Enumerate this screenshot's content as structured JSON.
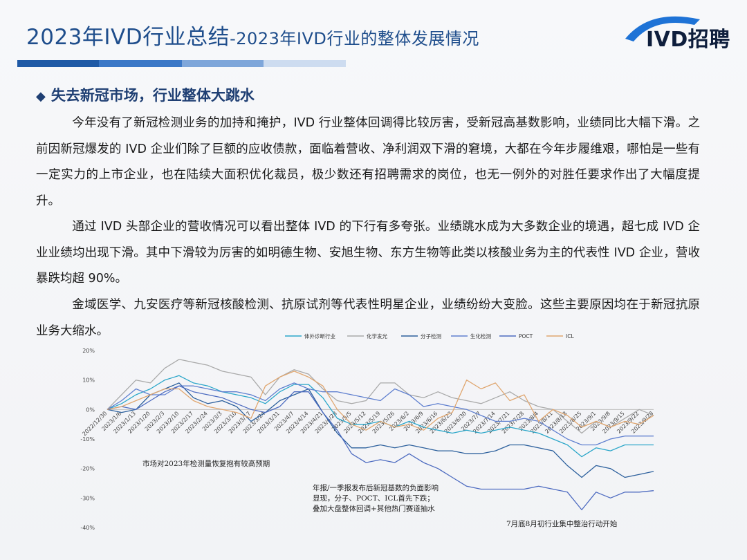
{
  "header": {
    "title_main": "2023年IVD行业总结",
    "title_sub": "-2023年IVD行业的整体发展情况",
    "logo_text": "IVD招聘",
    "bar_colors": [
      "#1f5aa6",
      "#3b78c7",
      "#7ea6da",
      "#cddcf0"
    ]
  },
  "section": {
    "bullet": "◆",
    "heading": "失去新冠市场，行业整体大跳水"
  },
  "paragraphs": [
    "今年没有了新冠检测业务的加持和掩护，IVD 行业整体回调得比较厉害，受新冠高基数影响，业绩同比大幅下滑。之前因新冠爆发的 IVD 企业们除了巨额的应收债款，面临着营收、净利润双下滑的窘境，大都在今年步履维艰，哪怕是一些有一定实力的上市企业，也在陆续大面积优化裁员，极少数还有招聘需求的岗位，也无一例外的对胜任要求作出了大幅度提升。",
    "通过 IVD 头部企业的营收情况可以看出整体 IVD 的下行有多夸张。业绩跳水成为大多数企业的境遇，超七成 IVD 企业业绩均出现下滑。其中下滑较为厉害的如明德生物、安旭生物、东方生物等此类以核酸业务为主的代表性 IVD 企业，营收暴跌均超 90%。",
    "金域医学、九安医疗等新冠核酸检测、抗原试剂等代表性明星企业，业绩纷纷大变脸。这些主要原因均在于新冠抗原业务大缩水。"
  ],
  "chart_data": {
    "type": "line",
    "ylim": [
      -40,
      20
    ],
    "yticks": [
      "20%",
      "10%",
      "0%",
      "-10%",
      "-20%",
      "-30%",
      "-40%"
    ],
    "x": [
      "2022/12/30",
      "2023/1/6",
      "2023/1/13",
      "2023/1/20",
      "2023/2/3",
      "2023/2/10",
      "2023/2/17",
      "2023/2/24",
      "2023/3/3",
      "2023/3/10",
      "2023/3/17",
      "2023/3/24",
      "2023/3/31",
      "2023/4/7",
      "2023/4/14",
      "2023/4/21",
      "2023/4/28",
      "2023/5/5",
      "2023/5/12",
      "2023/5/19",
      "2023/5/26",
      "2023/6/2",
      "2023/6/9",
      "2023/6/16",
      "2023/6/23",
      "2023/6/30",
      "2023/7/7",
      "2023/7/14",
      "2023/7/21",
      "2023/7/28",
      "2023/8/4",
      "2023/8/11",
      "2023/8/18",
      "2023/8/25",
      "2023/9/1",
      "2023/9/8",
      "2023/9/15",
      "2023/9/22",
      "2023/9/28"
    ],
    "series": [
      {
        "name": "体外诊断行业",
        "color": "#2aa6c9",
        "values": [
          0,
          2,
          5,
          7,
          10,
          11.5,
          9,
          8,
          6,
          5,
          4,
          2,
          6,
          8.5,
          8.5,
          4,
          -3,
          -5,
          -5,
          -4,
          -6,
          -4,
          -6,
          -7,
          -8,
          -7,
          -8,
          -7,
          -6,
          -7,
          -8,
          -10,
          -12,
          -16,
          -13,
          -14,
          -12,
          -12,
          -12
        ]
      },
      {
        "name": "化学发光",
        "color": "#a9a9a9",
        "values": [
          0,
          5,
          10,
          9,
          14,
          17,
          16,
          15,
          13,
          12,
          11,
          5,
          11,
          13.5,
          12,
          7,
          3,
          2,
          3,
          9,
          9,
          5,
          4,
          6,
          4,
          3,
          2,
          4,
          6,
          3,
          1,
          0,
          -4,
          -8,
          -4,
          -6,
          -3,
          0,
          -2
        ]
      },
      {
        "name": "分子检测",
        "color": "#2b5f9c",
        "values": [
          0,
          -1,
          0,
          5,
          7,
          9,
          4,
          2,
          3,
          1,
          -4,
          -1,
          3,
          5,
          7,
          -1,
          -8,
          -13,
          -13,
          -12,
          -13,
          -12,
          -13,
          -14,
          -14,
          -15,
          -15,
          -14,
          -12,
          -12,
          -13,
          -14,
          -19,
          -23,
          -19,
          -20,
          -23,
          -22,
          -21
        ]
      },
      {
        "name": "生化检测",
        "color": "#5f7fcf",
        "values": [
          0,
          3,
          7,
          5,
          5,
          8,
          8,
          7,
          6,
          6,
          5,
          3,
          7,
          9,
          7,
          6,
          6,
          5,
          4,
          3,
          7,
          5,
          1,
          2,
          1,
          0,
          -2,
          -4,
          -4,
          -3,
          -4,
          -7,
          -10,
          -12,
          -12,
          -10,
          -9,
          -9,
          -9
        ]
      },
      {
        "name": "POCT",
        "color": "#4d6bc0",
        "values": [
          0,
          1,
          0,
          3,
          6,
          8,
          6,
          5,
          4,
          2,
          0,
          -1,
          1,
          6,
          6,
          -1,
          -7,
          -15,
          -18,
          -17,
          -18,
          -15,
          -18,
          -20,
          -23,
          -26,
          -27,
          -27,
          -27,
          -27,
          -26,
          -27,
          -28,
          -34,
          -28,
          -30,
          -28,
          -28,
          -27.5
        ]
      },
      {
        "name": "ICL",
        "color": "#e0a66f",
        "values": [
          0,
          1,
          3,
          5,
          7,
          7,
          3,
          1,
          0,
          -1,
          -3,
          8,
          11,
          13,
          11,
          8,
          0,
          -5,
          -7,
          -4,
          -6,
          -5,
          -7,
          -3,
          -1,
          10,
          7,
          9,
          3,
          5,
          -4,
          0,
          -2,
          -6,
          -4,
          -6,
          -4,
          -5,
          -2
        ]
      }
    ],
    "annotations": [
      {
        "lines": [
          "市场对2023年检测量恢复抱有较高预期"
        ]
      },
      {
        "lines": [
          "年报/一季报发布后新冠基数的负面影响",
          "显现，分子、POCT、ICL首先下跌；",
          "叠加大盘整体回调+其他热门赛道抽水"
        ]
      },
      {
        "lines": [
          "7月底8月初行业集中整治行动开始"
        ]
      }
    ]
  }
}
